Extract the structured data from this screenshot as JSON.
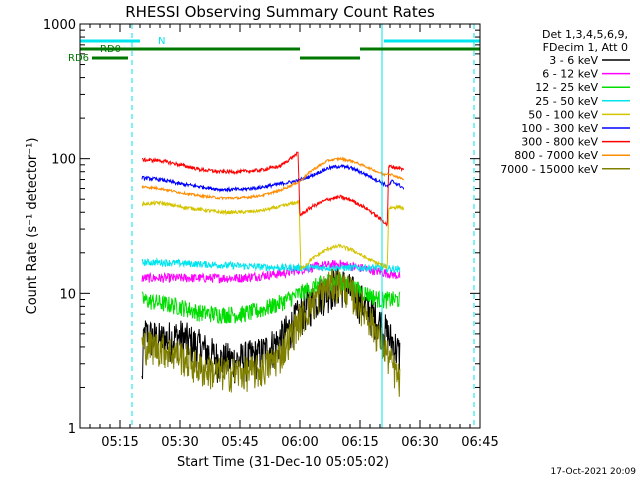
{
  "chart_data": {
    "type": "line",
    "title": "RHESSI Observing Summary Count Rates",
    "xlabel": "Start Time (31-Dec-10 05:05:02)",
    "ylabel": "Count Rate (s⁻¹ detector⁻¹)",
    "yscale": "log",
    "ylim": [
      1,
      1000
    ],
    "xlim_minutes": [
      0,
      100
    ],
    "x_unit": "minutes after 05:05:02",
    "x_ticks": [
      {
        "label": "05:15",
        "min": 10
      },
      {
        "label": "05:30",
        "min": 25
      },
      {
        "label": "05:45",
        "min": 40
      },
      {
        "label": "06:00",
        "min": 55
      },
      {
        "label": "06:15",
        "min": 70
      },
      {
        "label": "06:30",
        "min": 85
      },
      {
        "label": "06:45",
        "min": 100
      }
    ],
    "y_ticks": [
      {
        "label": "1",
        "value": 1
      },
      {
        "label": "10",
        "value": 10
      },
      {
        "label": "100",
        "value": 100
      },
      {
        "label": "1000",
        "value": 1000
      }
    ],
    "legend_header": [
      "Det 1,3,4,5,6,9,",
      "FDecim 1, Att 0"
    ],
    "series": [
      {
        "name": "3 - 6 keV",
        "color": "#000000",
        "noise": 0.35,
        "points": [
          [
            15.5,
            2.2
          ],
          [
            16,
            5
          ],
          [
            20,
            4.5
          ],
          [
            25,
            4.8
          ],
          [
            30,
            4.0
          ],
          [
            35,
            3.2
          ],
          [
            40,
            3.2
          ],
          [
            45,
            3.5
          ],
          [
            50,
            4.5
          ],
          [
            55,
            7
          ],
          [
            60,
            10
          ],
          [
            65,
            12
          ],
          [
            70,
            9
          ],
          [
            75,
            6
          ],
          [
            78.5,
            4.2
          ],
          [
            80,
            3.5
          ]
        ]
      },
      {
        "name": "6 - 12 keV",
        "color": "#ff00ff",
        "noise": 0.08,
        "points": [
          [
            15.5,
            13
          ],
          [
            20,
            13
          ],
          [
            30,
            13
          ],
          [
            40,
            13
          ],
          [
            50,
            14
          ],
          [
            55,
            15
          ],
          [
            60,
            16
          ],
          [
            65,
            16.5
          ],
          [
            70,
            15.5
          ],
          [
            75,
            14.5
          ],
          [
            80,
            13.5
          ]
        ]
      },
      {
        "name": "12 - 25 keV",
        "color": "#00dd00",
        "noise": 0.15,
        "points": [
          [
            15.5,
            9
          ],
          [
            20,
            8.5
          ],
          [
            25,
            8
          ],
          [
            30,
            7.2
          ],
          [
            35,
            7
          ],
          [
            40,
            7
          ],
          [
            45,
            7.5
          ],
          [
            50,
            8.5
          ],
          [
            55,
            10
          ],
          [
            58,
            11
          ],
          [
            62,
            12.5
          ],
          [
            66,
            12
          ],
          [
            70,
            10.5
          ],
          [
            75,
            9
          ],
          [
            80,
            9
          ]
        ]
      },
      {
        "name": "25 - 50 keV",
        "color": "#00e5ee",
        "noise": 0.06,
        "points": [
          [
            15.5,
            17
          ],
          [
            20,
            17
          ],
          [
            30,
            16.5
          ],
          [
            40,
            16
          ],
          [
            50,
            15.5
          ],
          [
            55,
            15.5
          ],
          [
            60,
            15.5
          ],
          [
            65,
            15.5
          ],
          [
            70,
            15.5
          ],
          [
            75,
            15.5
          ],
          [
            80,
            15
          ]
        ]
      },
      {
        "name": "50 - 100 keV",
        "color": "#d4c400",
        "noise": 0.03,
        "points": [
          [
            15.5,
            46
          ],
          [
            20,
            47
          ],
          [
            25,
            44
          ],
          [
            30,
            42
          ],
          [
            35,
            40
          ],
          [
            40,
            40
          ],
          [
            45,
            41
          ],
          [
            50,
            44
          ],
          [
            54.8,
            48
          ],
          [
            55.2,
            15
          ],
          [
            58,
            18
          ],
          [
            62,
            21.5
          ],
          [
            65,
            22.5
          ],
          [
            68,
            21
          ],
          [
            72,
            18
          ],
          [
            76,
            16
          ],
          [
            76.8,
            15.5
          ],
          [
            77.2,
            43
          ],
          [
            80,
            44
          ],
          [
            81,
            42
          ]
        ]
      },
      {
        "name": "100 - 300 keV",
        "color": "#0000ff",
        "noise": 0.03,
        "points": [
          [
            15.5,
            72
          ],
          [
            20,
            70
          ],
          [
            25,
            65
          ],
          [
            30,
            62
          ],
          [
            35,
            59
          ],
          [
            40,
            59
          ],
          [
            45,
            61
          ],
          [
            50,
            65
          ],
          [
            54,
            68
          ],
          [
            58,
            75
          ],
          [
            62,
            85
          ],
          [
            65,
            88
          ],
          [
            68,
            85
          ],
          [
            72,
            75
          ],
          [
            76,
            65
          ],
          [
            77,
            62
          ],
          [
            78,
            68
          ],
          [
            80,
            63
          ],
          [
            81,
            60
          ]
        ]
      },
      {
        "name": "300 - 800 keV",
        "color": "#ff0000",
        "noise": 0.03,
        "points": [
          [
            15.5,
            98
          ],
          [
            20,
            97
          ],
          [
            25,
            90
          ],
          [
            30,
            83
          ],
          [
            35,
            80
          ],
          [
            40,
            80
          ],
          [
            45,
            82
          ],
          [
            50,
            88
          ],
          [
            54.5,
            110
          ],
          [
            55,
            38
          ],
          [
            58,
            44
          ],
          [
            62,
            50
          ],
          [
            65,
            52
          ],
          [
            68,
            49
          ],
          [
            72,
            42
          ],
          [
            76,
            34
          ],
          [
            76.8,
            32
          ],
          [
            77.2,
            88
          ],
          [
            80,
            85
          ],
          [
            81,
            82
          ]
        ]
      },
      {
        "name": "800 - 7000 keV",
        "color": "#ff8c00",
        "noise": 0.02,
        "points": [
          [
            15.5,
            62
          ],
          [
            20,
            60
          ],
          [
            25,
            56
          ],
          [
            30,
            53
          ],
          [
            35,
            51
          ],
          [
            40,
            51
          ],
          [
            45,
            53
          ],
          [
            50,
            58
          ],
          [
            55,
            68
          ],
          [
            58,
            82
          ],
          [
            62,
            97
          ],
          [
            65,
            100
          ],
          [
            68,
            96
          ],
          [
            72,
            86
          ],
          [
            76,
            76
          ],
          [
            77,
            78
          ],
          [
            80,
            72
          ],
          [
            81,
            70
          ]
        ]
      },
      {
        "name": "7000 - 15000 keV",
        "color": "#808000",
        "noise": 0.3,
        "points": [
          [
            15.5,
            4.2
          ],
          [
            20,
            4.0
          ],
          [
            25,
            3.5
          ],
          [
            30,
            2.8
          ],
          [
            35,
            2.6
          ],
          [
            40,
            2.6
          ],
          [
            45,
            2.7
          ],
          [
            50,
            3.5
          ],
          [
            55,
            6.5
          ],
          [
            58,
            8.5
          ],
          [
            62,
            11.5
          ],
          [
            65,
            12
          ],
          [
            68,
            10
          ],
          [
            72,
            7
          ],
          [
            76,
            4
          ],
          [
            80,
            2.2
          ]
        ]
      }
    ],
    "states": [
      {
        "name": "N",
        "color": "#00e5ee",
        "segments": [
          [
            0,
            15
          ],
          [
            76,
            100
          ]
        ],
        "level": 1
      },
      {
        "name": "RD0",
        "color": "#007700",
        "segments": [
          [
            0,
            55
          ],
          [
            70,
            100
          ]
        ],
        "level": 2
      },
      {
        "name": "RD6",
        "color": "#007700",
        "segments": [
          [
            3,
            12
          ],
          [
            55,
            70
          ]
        ],
        "level": 3
      }
    ],
    "vlines": [
      {
        "min": 0,
        "style": "solid"
      },
      {
        "min": 13,
        "style": "dashed"
      },
      {
        "min": 75.5,
        "style": "solid"
      },
      {
        "min": 98.5,
        "style": "dashed"
      }
    ]
  },
  "timestamp": "17-Oct-2021 20:09"
}
